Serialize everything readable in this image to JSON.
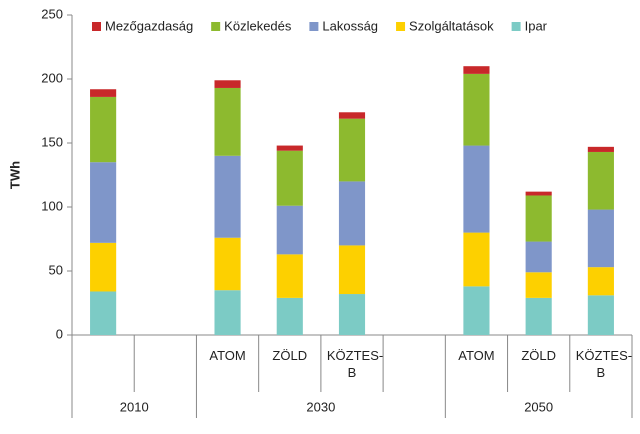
{
  "chart_data": {
    "type": "bar",
    "stacked": true,
    "y_label": "TWh",
    "categories": [
      null,
      null,
      "ATOM",
      "ZÖLD",
      "KÖZTES-B",
      null,
      "ATOM",
      "ZÖLD",
      "KÖZTES-B"
    ],
    "groups": [
      {
        "name": "2010",
        "size": 2
      },
      {
        "name": "2030",
        "size": 4
      },
      {
        "name": "2050",
        "size": 3
      }
    ],
    "series": [
      {
        "name": "Mezőgazdaság",
        "color": "#c8282a",
        "values": [
          6,
          null,
          6,
          4,
          5,
          null,
          6,
          3,
          4
        ]
      },
      {
        "name": "Közlekedés",
        "color": "#8dba2f",
        "values": [
          51,
          null,
          53,
          43,
          49,
          null,
          56,
          36,
          45
        ]
      },
      {
        "name": "Lakosság",
        "color": "#7f96c9",
        "values": [
          63,
          null,
          64,
          38,
          50,
          null,
          68,
          24,
          45
        ]
      },
      {
        "name": "Szolgáltatások",
        "color": "#fdd000",
        "values": [
          38,
          null,
          41,
          34,
          38,
          null,
          42,
          20,
          22
        ]
      },
      {
        "name": "Ipar",
        "color": "#7ccbc5",
        "values": [
          34,
          null,
          35,
          29,
          32,
          null,
          38,
          29,
          31
        ]
      }
    ],
    "ylim": [
      0,
      250
    ],
    "yticks": [
      0,
      50,
      100,
      150,
      200,
      250
    ]
  }
}
